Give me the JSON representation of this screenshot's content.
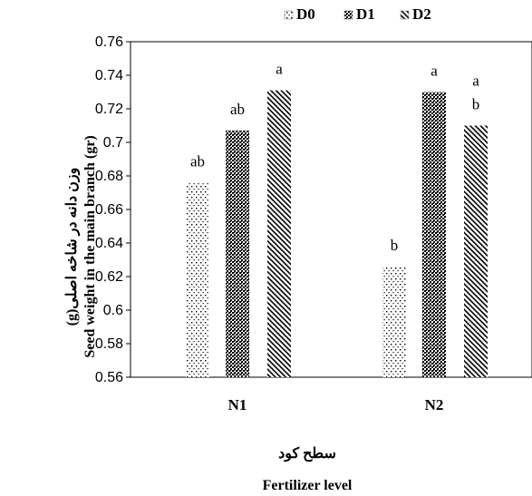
{
  "chart_data": {
    "type": "bar",
    "categories": [
      "N1",
      "N2"
    ],
    "series": [
      {
        "name": "D0",
        "values": [
          0.676,
          0.626
        ],
        "letters": [
          "ab",
          "b"
        ],
        "pattern": "dots"
      },
      {
        "name": "D1",
        "values": [
          0.707,
          0.73
        ],
        "letters": [
          "ab",
          "a"
        ],
        "pattern": "checker"
      },
      {
        "name": "D2",
        "values": [
          0.731,
          0.71
        ],
        "letters": [
          "a",
          "b"
        ],
        "pattern": "diagonal"
      }
    ],
    "extra_annotations": [
      {
        "category": "N2",
        "series": "D2",
        "text": "a"
      }
    ],
    "ylabel_fa": "وزن دانه در شاخه اصلی(g)",
    "ylabel_en": "Seed  weight in the main branch (gr)",
    "xlabel_fa": "سطح کود",
    "xlabel_en": "Fertilizer level",
    "ylim": [
      0.56,
      0.76
    ],
    "yticks": [
      0.56,
      0.58,
      0.6,
      0.62,
      0.64,
      0.66,
      0.68,
      0.7,
      0.72,
      0.74,
      0.76
    ],
    "ytick_labels": [
      "0.56",
      "0.58",
      "0.6",
      "0.62",
      "0.64",
      "0.66",
      "0.68",
      "0.7",
      "0.72",
      "0.74",
      "0.76"
    ],
    "grid": false,
    "legend_position": "top-center"
  }
}
